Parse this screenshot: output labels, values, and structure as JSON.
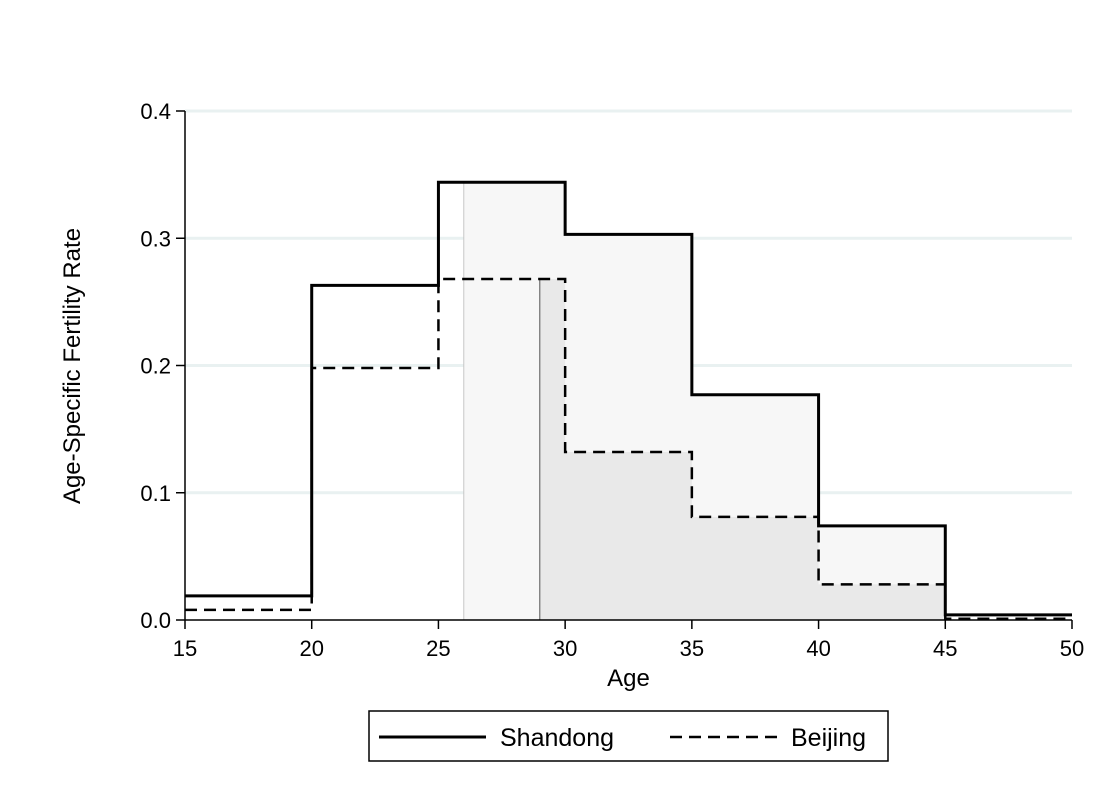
{
  "chart_data": {
    "type": "line",
    "step": "histogram",
    "xlabel": "Age",
    "ylabel": "Age-Specific Fertility Rate",
    "xlim": [
      15,
      50
    ],
    "ylim": [
      0,
      0.4
    ],
    "x_ticks": [
      "15",
      "20",
      "25",
      "30",
      "35",
      "40",
      "45",
      "50"
    ],
    "y_ticks": [
      "0.0",
      "0.1",
      "0.2",
      "0.3",
      "0.4"
    ],
    "bin_edges": [
      15,
      20,
      25,
      30,
      35,
      40,
      45,
      50
    ],
    "grid": "horizontal",
    "legend_position": "bottom",
    "series": [
      {
        "name": "Shandong",
        "line_style": "solid",
        "values": [
          0.019,
          0.263,
          0.344,
          0.303,
          0.177,
          0.074,
          0.004
        ]
      },
      {
        "name": "Beijing",
        "line_style": "dashed",
        "values": [
          0.008,
          0.198,
          0.268,
          0.132,
          0.081,
          0.028,
          0.001
        ]
      }
    ],
    "shaded_regions": [
      {
        "series": "Shandong",
        "x_start": 26,
        "x_end": 45,
        "color": "#f7f7f7"
      },
      {
        "series": "Beijing",
        "x_start": 29,
        "x_end": 45,
        "color": "#e9e9e9"
      }
    ],
    "colors": {
      "line": "#000000",
      "grid": "#e9f1f1"
    }
  }
}
